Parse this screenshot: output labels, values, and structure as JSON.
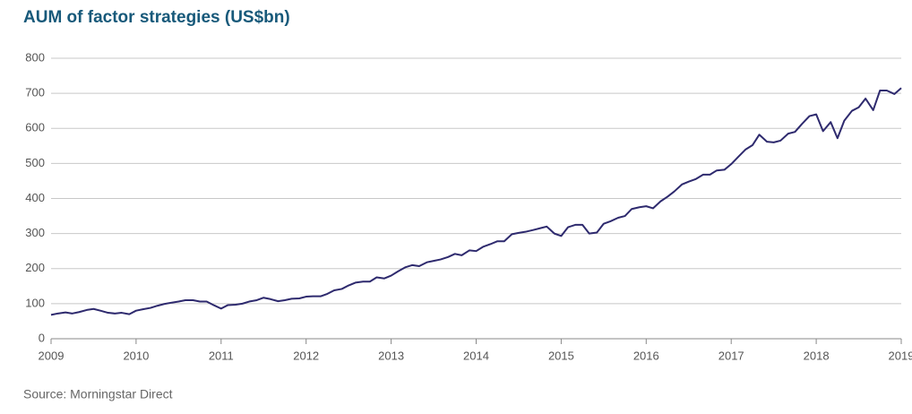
{
  "chart_data": {
    "type": "line",
    "title": "AUM of factor strategies (US$bn)",
    "source": "Source: Morningstar Direct",
    "x": [
      2009.0,
      2009.08,
      2009.17,
      2009.25,
      2009.33,
      2009.42,
      2009.5,
      2009.58,
      2009.67,
      2009.75,
      2009.83,
      2009.92,
      2010.0,
      2010.08,
      2010.17,
      2010.25,
      2010.33,
      2010.42,
      2010.5,
      2010.58,
      2010.67,
      2010.75,
      2010.83,
      2010.92,
      2011.0,
      2011.08,
      2011.17,
      2011.25,
      2011.33,
      2011.42,
      2011.5,
      2011.58,
      2011.67,
      2011.75,
      2011.83,
      2011.92,
      2012.0,
      2012.08,
      2012.17,
      2012.25,
      2012.33,
      2012.42,
      2012.5,
      2012.58,
      2012.67,
      2012.75,
      2012.83,
      2012.92,
      2013.0,
      2013.08,
      2013.17,
      2013.25,
      2013.33,
      2013.42,
      2013.5,
      2013.58,
      2013.67,
      2013.75,
      2013.83,
      2013.92,
      2014.0,
      2014.08,
      2014.17,
      2014.25,
      2014.33,
      2014.42,
      2014.5,
      2014.58,
      2014.67,
      2014.75,
      2014.83,
      2014.92,
      2015.0,
      2015.08,
      2015.17,
      2015.25,
      2015.33,
      2015.42,
      2015.5,
      2015.58,
      2015.67,
      2015.75,
      2015.83,
      2015.92,
      2016.0,
      2016.08,
      2016.17,
      2016.25,
      2016.33,
      2016.42,
      2016.5,
      2016.58,
      2016.67,
      2016.75,
      2016.83,
      2016.92,
      2017.0,
      2017.08,
      2017.17,
      2017.25,
      2017.33,
      2017.42,
      2017.5,
      2017.58,
      2017.67,
      2017.75,
      2017.83,
      2017.92,
      2018.0,
      2018.08,
      2018.17,
      2018.25,
      2018.33,
      2018.42,
      2018.5,
      2018.58,
      2018.67,
      2018.75,
      2018.83,
      2018.92,
      2019.0
    ],
    "series": [
      {
        "color": "#2e2a6e",
        "values": [
          68,
          72,
          75,
          72,
          76,
          82,
          85,
          80,
          74,
          72,
          74,
          70,
          80,
          84,
          88,
          94,
          99,
          103,
          106,
          110,
          110,
          106,
          106,
          95,
          86,
          96,
          97,
          100,
          106,
          110,
          117,
          113,
          107,
          110,
          114,
          115,
          120,
          121,
          121,
          128,
          138,
          142,
          152,
          160,
          163,
          163,
          175,
          172,
          180,
          192,
          204,
          210,
          207,
          218,
          222,
          226,
          233,
          242,
          238,
          252,
          250,
          262,
          270,
          278,
          278,
          298,
          302,
          305,
          310,
          315,
          320,
          300,
          293,
          318,
          325,
          325,
          300,
          303,
          328,
          335,
          345,
          350,
          370,
          375,
          378,
          372,
          392,
          405,
          420,
          440,
          448,
          455,
          468,
          468,
          480,
          482,
          498,
          518,
          540,
          552,
          582,
          562,
          560,
          565,
          585,
          590,
          612,
          635,
          640,
          592,
          618,
          572,
          622,
          650,
          660,
          685,
          652,
          708,
          708,
          698,
          715
        ]
      }
    ],
    "xlim": [
      2009,
      2019
    ],
    "xticks": [
      2009,
      2010,
      2011,
      2012,
      2013,
      2014,
      2015,
      2016,
      2017,
      2018,
      2019
    ],
    "ylim": [
      0,
      800
    ],
    "yticks": [
      0,
      100,
      200,
      300,
      400,
      500,
      600,
      700,
      800
    ],
    "grid": true
  }
}
